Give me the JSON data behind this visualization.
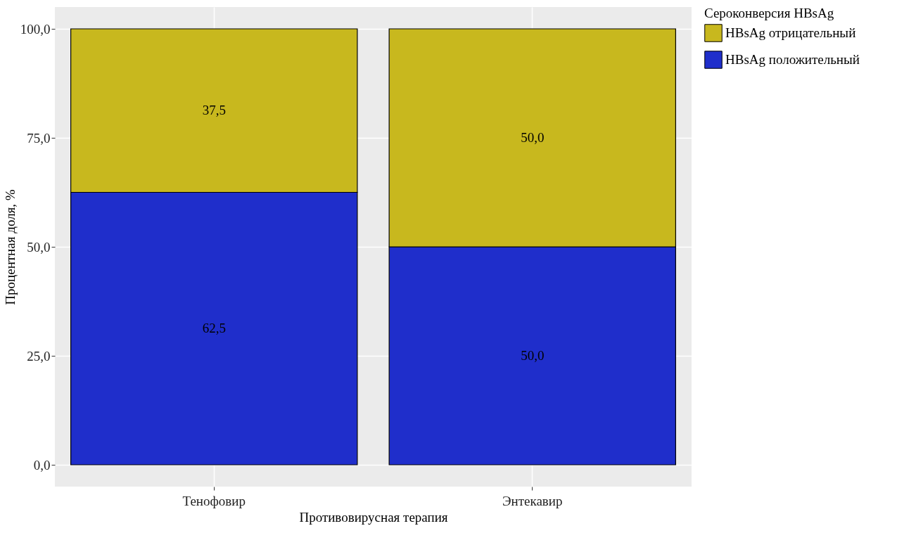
{
  "chart_data": {
    "type": "bar",
    "stacked": true,
    "xlabel": "Противовирусная терапия",
    "ylabel": "Процентная доля, %",
    "legend_title": "Сероконверсия HBsAg",
    "categories": [
      "Тенофовир",
      "Энтекавир"
    ],
    "series": [
      {
        "name": "HBsAg положительный",
        "color": "#1f2ecb",
        "values": [
          62.5,
          50.0
        ],
        "value_labels": [
          "62,5",
          "50,0"
        ]
      },
      {
        "name": "HBsAg отрицательный",
        "color": "#c8b81e",
        "values": [
          37.5,
          50.0
        ],
        "value_labels": [
          "37,5",
          "50,0"
        ]
      }
    ],
    "ylim": [
      -5,
      105
    ],
    "yticks": [
      {
        "value": 0,
        "label": "0,0"
      },
      {
        "value": 25,
        "label": "25,0"
      },
      {
        "value": 50,
        "label": "50,0"
      },
      {
        "value": 75,
        "label": "75,0"
      },
      {
        "value": 100,
        "label": "100,0"
      }
    ],
    "grid": true,
    "legend": "right"
  }
}
